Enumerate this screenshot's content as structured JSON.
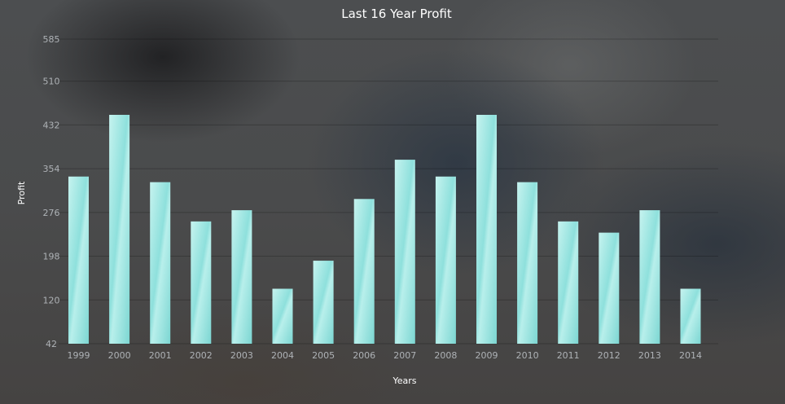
{
  "chart_data": {
    "type": "bar",
    "title": "Last 16 Year Profit",
    "xlabel": "Years",
    "ylabel": "Profit",
    "categories": [
      "1999",
      "2000",
      "2001",
      "2002",
      "2003",
      "2004",
      "2005",
      "2006",
      "2007",
      "2008",
      "2009",
      "2010",
      "2011",
      "2012",
      "2013",
      "2014"
    ],
    "values": [
      340,
      450,
      330,
      260,
      280,
      140,
      190,
      300,
      370,
      340,
      450,
      330,
      260,
      240,
      280,
      140
    ],
    "yticks": [
      "42",
      "120",
      "198",
      "276",
      "354",
      "432",
      "510",
      "585"
    ],
    "ylim": [
      42,
      585
    ],
    "grid": true,
    "bar_color": "#8ee0dc"
  }
}
